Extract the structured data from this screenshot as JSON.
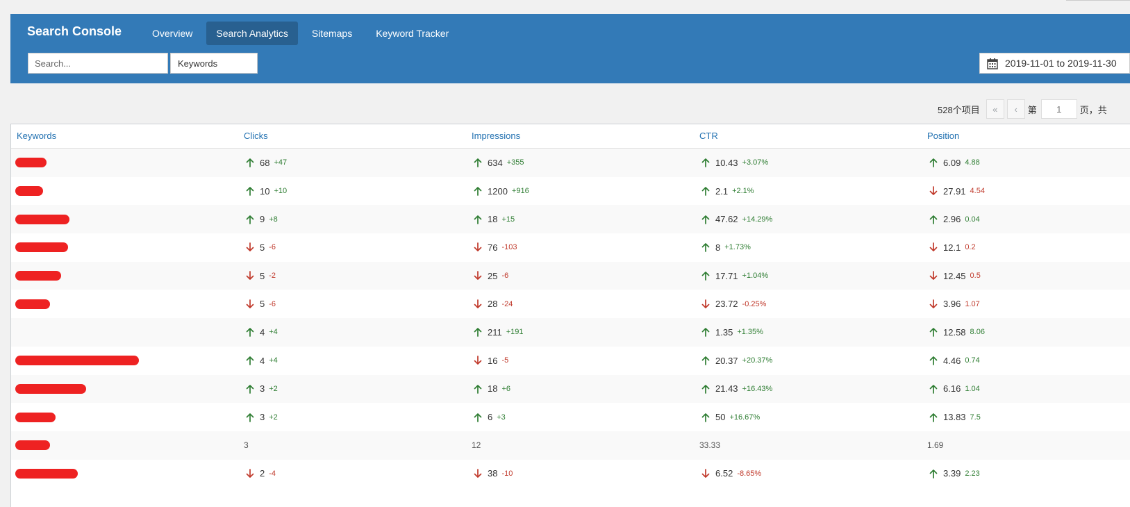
{
  "header": {
    "title": "Search Console",
    "tabs": [
      {
        "label": "Overview",
        "active": false
      },
      {
        "label": "Search Analytics",
        "active": true
      },
      {
        "label": "Sitemaps",
        "active": false
      },
      {
        "label": "Keyword Tracker",
        "active": false
      }
    ],
    "search_placeholder": "Search...",
    "search_type": "Keywords",
    "date_range": "2019-11-01 to 2019-11-30",
    "accent": "#337ab7"
  },
  "pagination": {
    "total": "528个项目",
    "first": "«",
    "prev": "‹",
    "page_prefix": "第",
    "page": "1",
    "page_suffix": "页，共"
  },
  "table": {
    "columns": [
      "Keywords",
      "Clicks",
      "Impressions",
      "CTR",
      "Position"
    ],
    "rows": [
      {
        "redact_width": 45,
        "cells": [
          {
            "dir": "up",
            "value": "68",
            "delta": "+47"
          },
          {
            "dir": "up",
            "value": "634",
            "delta": "+355"
          },
          {
            "dir": "up",
            "value": "10.43",
            "delta": "+3.07%"
          },
          {
            "dir": "up",
            "value": "6.09",
            "delta": "4.88"
          }
        ]
      },
      {
        "redact_width": 40,
        "cells": [
          {
            "dir": "up",
            "value": "10",
            "delta": "+10"
          },
          {
            "dir": "up",
            "value": "1200",
            "delta": "+916"
          },
          {
            "dir": "up",
            "value": "2.1",
            "delta": "+2.1%"
          },
          {
            "dir": "down",
            "value": "27.91",
            "delta": "4.54"
          }
        ]
      },
      {
        "redact_width": 78,
        "cells": [
          {
            "dir": "up",
            "value": "9",
            "delta": "+8"
          },
          {
            "dir": "up",
            "value": "18",
            "delta": "+15"
          },
          {
            "dir": "up",
            "value": "47.62",
            "delta": "+14.29%"
          },
          {
            "dir": "up",
            "value": "2.96",
            "delta": "0.04"
          }
        ]
      },
      {
        "redact_width": 76,
        "cells": [
          {
            "dir": "down",
            "value": "5",
            "delta": "-6"
          },
          {
            "dir": "down",
            "value": "76",
            "delta": "-103"
          },
          {
            "dir": "up",
            "value": "8",
            "delta": "+1.73%"
          },
          {
            "dir": "down",
            "value": "12.1",
            "delta": "0.2"
          }
        ]
      },
      {
        "redact_width": 66,
        "cells": [
          {
            "dir": "down",
            "value": "5",
            "delta": "-2"
          },
          {
            "dir": "down",
            "value": "25",
            "delta": "-6"
          },
          {
            "dir": "up",
            "value": "17.71",
            "delta": "+1.04%"
          },
          {
            "dir": "down",
            "value": "12.45",
            "delta": "0.5"
          }
        ]
      },
      {
        "redact_width": 50,
        "cells": [
          {
            "dir": "down",
            "value": "5",
            "delta": "-6"
          },
          {
            "dir": "down",
            "value": "28",
            "delta": "-24"
          },
          {
            "dir": "down",
            "value": "23.72",
            "delta": "-0.25%"
          },
          {
            "dir": "down",
            "value": "3.96",
            "delta": "1.07"
          }
        ]
      },
      {
        "redact_width": 0,
        "cells": [
          {
            "dir": "up",
            "value": "4",
            "delta": "+4"
          },
          {
            "dir": "up",
            "value": "211",
            "delta": "+191"
          },
          {
            "dir": "up",
            "value": "1.35",
            "delta": "+1.35%"
          },
          {
            "dir": "up",
            "value": "12.58",
            "delta": "8.06"
          }
        ]
      },
      {
        "redact_width": 178,
        "cells": [
          {
            "dir": "up",
            "value": "4",
            "delta": "+4"
          },
          {
            "dir": "down",
            "value": "16",
            "delta": "-5"
          },
          {
            "dir": "up",
            "value": "20.37",
            "delta": "+20.37%"
          },
          {
            "dir": "up",
            "value": "4.46",
            "delta": "0.74"
          }
        ]
      },
      {
        "redact_width": 102,
        "cells": [
          {
            "dir": "up",
            "value": "3",
            "delta": "+2"
          },
          {
            "dir": "up",
            "value": "18",
            "delta": "+6"
          },
          {
            "dir": "up",
            "value": "21.43",
            "delta": "+16.43%"
          },
          {
            "dir": "up",
            "value": "6.16",
            "delta": "1.04"
          }
        ]
      },
      {
        "redact_width": 58,
        "cells": [
          {
            "dir": "up",
            "value": "3",
            "delta": "+2"
          },
          {
            "dir": "up",
            "value": "6",
            "delta": "+3"
          },
          {
            "dir": "up",
            "value": "50",
            "delta": "+16.67%"
          },
          {
            "dir": "up",
            "value": "13.83",
            "delta": "7.5"
          }
        ]
      },
      {
        "redact_width": 50,
        "cells": [
          {
            "dir": "none",
            "value": "3",
            "delta": ""
          },
          {
            "dir": "none",
            "value": "12",
            "delta": ""
          },
          {
            "dir": "none",
            "value": "33.33",
            "delta": ""
          },
          {
            "dir": "none",
            "value": "1.69",
            "delta": ""
          }
        ]
      },
      {
        "redact_width": 90,
        "cells": [
          {
            "dir": "down",
            "value": "2",
            "delta": "-4"
          },
          {
            "dir": "down",
            "value": "38",
            "delta": "-10"
          },
          {
            "dir": "down",
            "value": "6.52",
            "delta": "-8.65%"
          },
          {
            "dir": "up",
            "value": "3.39",
            "delta": "2.23"
          }
        ]
      }
    ]
  }
}
